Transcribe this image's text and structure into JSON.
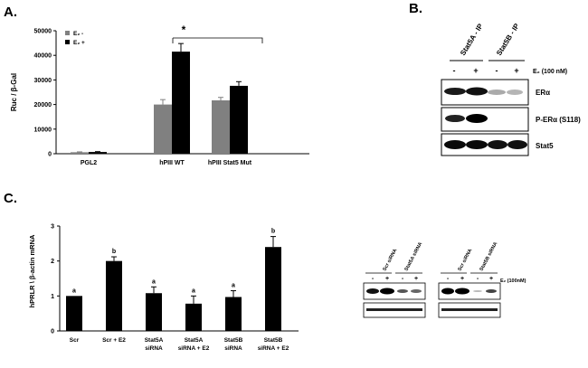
{
  "panels": {
    "a": "A.",
    "b": "B.",
    "c": "C."
  },
  "chart_data": [
    {
      "type": "bar",
      "panel": "A",
      "ylabel": "Ruc / β-Gal",
      "ylim": [
        0,
        50000
      ],
      "yticks": [
        "0",
        "10000",
        "20000",
        "30000",
        "40000",
        "50000"
      ],
      "categories": [
        "PGL2",
        "hPIII WT",
        "hPIII  Stat5 Mut"
      ],
      "series": [
        {
          "name": "E₂ -",
          "color": "#808080",
          "values": [
            600,
            20000,
            21700
          ],
          "errors": [
            150,
            2000,
            1200
          ]
        },
        {
          "name": "E₂ +",
          "color": "#000000",
          "values": [
            700,
            41500,
            27600
          ],
          "errors": [
            150,
            3300,
            1700
          ]
        }
      ],
      "legend_position": "top-left",
      "annotation": "*"
    },
    {
      "type": "bar",
      "panel": "C",
      "ylabel": "hPRLR \\ β-actin mRNA",
      "ylim": [
        0,
        3
      ],
      "yticks": [
        "0",
        "1",
        "2",
        "3"
      ],
      "categories": [
        "Scr",
        "Scr + E2",
        "Stat5A\nsiRNA",
        "Stat5A\nsiRNA + E2",
        "Stat5B\nsiRNA",
        "Stat5B\nsiRNA + E2"
      ],
      "values": [
        1.0,
        2.0,
        1.08,
        0.78,
        0.97,
        2.4
      ],
      "errors": [
        0,
        0.12,
        0.18,
        0.22,
        0.18,
        0.3
      ],
      "letters": [
        "a",
        "b",
        "a",
        "a",
        "a",
        "b"
      ],
      "color": "#000000"
    }
  ],
  "blot_b": {
    "ip_labels": [
      "Stat5A - IP",
      "Stat5B - IP"
    ],
    "lane_signs": [
      "-",
      "+",
      "-",
      "+"
    ],
    "treatment": "E₂ (100 nM)",
    "rows": [
      "ERα",
      "P-ERα (S118)",
      "Stat5"
    ]
  },
  "blot_c": {
    "left_labels": [
      "Scr siRNA",
      "Stat5A siRNA"
    ],
    "right_labels": [
      "Scr siRNA",
      "Stat5B siRNA"
    ],
    "lane_signs": [
      "-",
      "+",
      "-",
      "+"
    ],
    "treatment": "E₂ (100nM)"
  }
}
